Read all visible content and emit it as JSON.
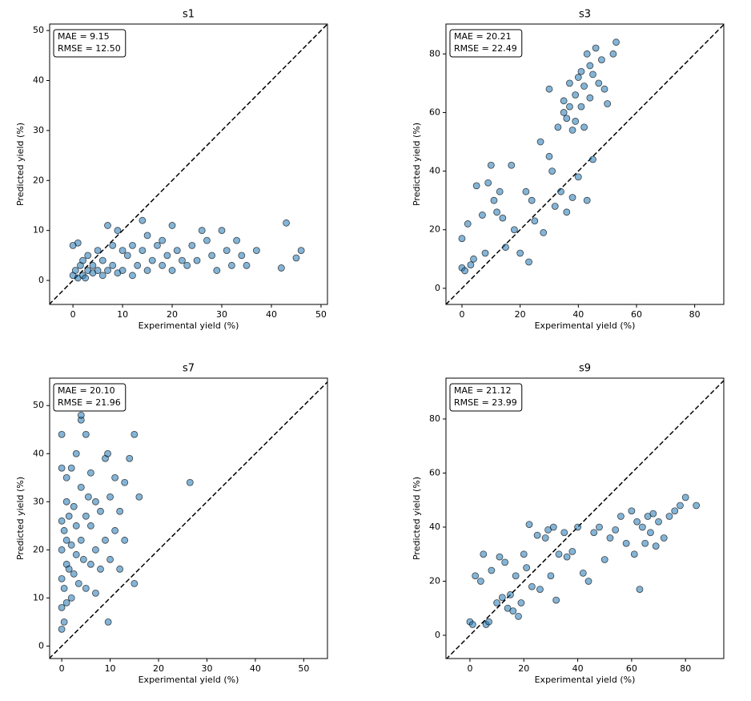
{
  "chart_data": [
    {
      "type": "scatter",
      "title": "s1",
      "xlabel": "Experimental yield (%)",
      "ylabel": "Predicted yield (%)",
      "annotation": [
        "MAE = 9.15",
        "RMSE = 12.50"
      ],
      "color": "#1f77b4",
      "identity_line": true,
      "xlim": [
        -4.7,
        51.3
      ],
      "ylim": [
        -4.8,
        51.3
      ],
      "xticks": [
        0,
        10,
        20,
        30,
        40,
        50
      ],
      "yticks": [
        0,
        10,
        20,
        30,
        40,
        50
      ],
      "x": [
        0,
        0.5,
        1,
        1,
        1.5,
        2,
        2,
        2.5,
        3,
        3,
        4,
        4,
        5,
        5,
        6,
        6,
        7,
        7,
        8,
        8,
        9,
        9,
        10,
        10,
        11,
        12,
        12,
        13,
        14,
        14,
        15,
        15,
        16,
        17,
        18,
        18,
        19,
        20,
        20,
        21,
        22,
        23,
        24,
        25,
        26,
        27,
        28,
        29,
        30,
        31,
        32,
        33,
        34,
        35,
        37,
        42,
        43,
        45,
        46,
        0
      ],
      "y": [
        1,
        2,
        0.5,
        7.5,
        3,
        1,
        4,
        0.5,
        2,
        5,
        1.5,
        3,
        2,
        6,
        1,
        4,
        11,
        2,
        3,
        7,
        1.5,
        10,
        2,
        6,
        5,
        1,
        7,
        3,
        12,
        6,
        2,
        9,
        4,
        7,
        3,
        8,
        5,
        11,
        2,
        6,
        4,
        3,
        7,
        4,
        10,
        8,
        5,
        2,
        10,
        6,
        3,
        8,
        5,
        3,
        6,
        2.5,
        11.5,
        4.5,
        6,
        7
      ]
    },
    {
      "type": "scatter",
      "title": "s3",
      "xlabel": "Experimental yield (%)",
      "ylabel": "Predicted yield (%)",
      "annotation": [
        "MAE = 20.21",
        "RMSE = 22.49"
      ],
      "color": "#1f77b4",
      "identity_line": true,
      "xlim": [
        -5.5,
        90
      ],
      "ylim": [
        -5.5,
        90.2
      ],
      "xticks": [
        0,
        20,
        40,
        60,
        80
      ],
      "yticks": [
        0,
        20,
        40,
        60,
        80
      ],
      "x": [
        0,
        0,
        1,
        2,
        3,
        4,
        5,
        7,
        8,
        9,
        10,
        11,
        12,
        13,
        14,
        15,
        17,
        18,
        20,
        22,
        23,
        24,
        25,
        27,
        28,
        30,
        30,
        31,
        32,
        33,
        34,
        35,
        35,
        36,
        36,
        37,
        37,
        38,
        38,
        39,
        39,
        40,
        40,
        41,
        41,
        42,
        42,
        43,
        43,
        44,
        44,
        45,
        45,
        46,
        47,
        48,
        49,
        50,
        52,
        53
      ],
      "y": [
        17,
        7,
        6,
        22,
        8,
        10,
        35,
        25,
        12,
        36,
        42,
        30,
        26,
        33,
        24,
        14,
        42,
        20,
        12,
        33,
        9,
        30,
        23,
        50,
        19,
        45,
        68,
        40,
        28,
        55,
        33,
        60,
        64,
        26,
        58,
        70,
        62,
        31,
        54,
        57,
        66,
        38,
        72,
        62,
        74,
        55,
        69,
        30,
        80,
        65,
        76,
        44,
        73,
        82,
        70,
        78,
        68,
        63,
        80,
        84
      ]
    },
    {
      "type": "scatter",
      "title": "s7",
      "xlabel": "Experimental yield (%)",
      "ylabel": "Predicted yield (%)",
      "annotation": [
        "MAE = 20.10",
        "RMSE = 21.96"
      ],
      "color": "#1f77b4",
      "identity_line": true,
      "xlim": [
        -2.5,
        54.9
      ],
      "ylim": [
        -2.6,
        55.7
      ],
      "xticks": [
        0,
        10,
        20,
        30,
        40,
        50
      ],
      "yticks": [
        0,
        10,
        20,
        30,
        40,
        50
      ],
      "x": [
        0,
        0,
        0,
        0,
        0,
        0,
        0,
        0.5,
        0.5,
        0.5,
        1,
        1,
        1,
        1,
        1,
        1.5,
        1.5,
        2,
        2,
        2,
        2.5,
        2.5,
        3,
        3,
        3,
        3.5,
        4,
        4,
        4,
        4.5,
        5,
        5,
        5,
        5.5,
        6,
        6,
        6,
        7,
        7,
        7,
        8,
        8,
        9,
        9,
        9.5,
        10,
        10,
        11,
        11,
        12,
        12,
        13,
        13,
        14,
        15,
        15,
        16,
        26.5,
        4,
        9.6
      ],
      "y": [
        3.5,
        8,
        14,
        20,
        26,
        37,
        44,
        5,
        12,
        24,
        9,
        17,
        22,
        30,
        35,
        16,
        27,
        10,
        21,
        37,
        15,
        29,
        19,
        25,
        40,
        13,
        22,
        33,
        47,
        18,
        12,
        27,
        44,
        31,
        17,
        25,
        36,
        11,
        20,
        30,
        16,
        28,
        39,
        22,
        40,
        18,
        31,
        24,
        35,
        16,
        28,
        22,
        34,
        39,
        13,
        44,
        31,
        34,
        48,
        5
      ]
    },
    {
      "type": "scatter",
      "title": "s9",
      "xlabel": "Experimental yield (%)",
      "ylabel": "Predicted yield (%)",
      "annotation": [
        "MAE = 21.12",
        "RMSE = 23.99"
      ],
      "color": "#1f77b4",
      "identity_line": true,
      "xlim": [
        -8.9,
        94.2
      ],
      "ylim": [
        -8.6,
        95.1
      ],
      "xticks": [
        0,
        20,
        40,
        60,
        80
      ],
      "yticks": [
        0,
        20,
        40,
        60,
        80
      ],
      "x": [
        0,
        1,
        2,
        4,
        5,
        6,
        7,
        8,
        10,
        11,
        12,
        13,
        14,
        15,
        16,
        17,
        18,
        19,
        20,
        21,
        22,
        23,
        25,
        26,
        28,
        29,
        30,
        31,
        32,
        33,
        35,
        36,
        38,
        40,
        42,
        44,
        46,
        48,
        50,
        52,
        54,
        56,
        58,
        60,
        61,
        62,
        63,
        64,
        65,
        66,
        67,
        68,
        69,
        70,
        72,
        74,
        76,
        78,
        80,
        84
      ],
      "y": [
        5,
        4,
        22,
        20,
        30,
        4,
        5,
        24,
        12,
        29,
        14,
        27,
        10,
        15,
        9,
        22,
        7,
        12,
        30,
        25,
        41,
        18,
        37,
        17,
        36,
        39,
        22,
        40,
        13,
        30,
        38,
        29,
        31,
        40,
        23,
        20,
        38,
        40,
        28,
        36,
        39,
        44,
        34,
        46,
        30,
        42,
        17,
        40,
        34,
        44,
        38,
        45,
        33,
        42,
        36,
        44,
        46,
        48,
        51,
        48
      ]
    }
  ]
}
